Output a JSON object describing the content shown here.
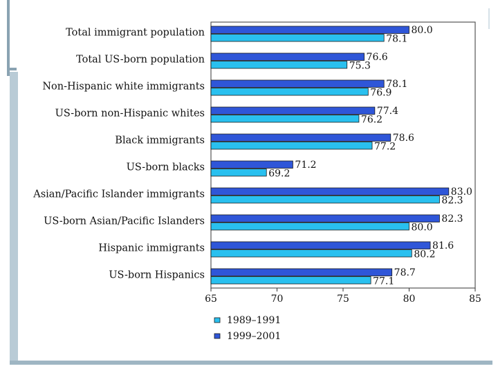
{
  "colors": {
    "series_1989": "#29c0ef",
    "series_1999": "#2f56d8",
    "frame": "#555555",
    "bar_stroke": "#1a1a1a"
  },
  "chart_data": {
    "type": "bar",
    "orientation": "horizontal",
    "title": "",
    "xlabel": "",
    "ylabel": "",
    "xlim": [
      65,
      85
    ],
    "xticks": [
      65,
      70,
      75,
      80,
      85
    ],
    "xtick_labels": [
      "65",
      "70",
      "75",
      "80",
      "85"
    ],
    "categories": [
      "Total immigrant population",
      "Total US-born population",
      "Non-Hispanic white immigrants",
      "US-born non-Hispanic whites",
      "Black immigrants",
      "US-born blacks",
      "Asian/Pacific Islander immigrants",
      "US-born Asian/Pacific Islanders",
      "Hispanic immigrants",
      "US-born Hispanics"
    ],
    "series": [
      {
        "name": "1999–2001",
        "values": [
          80.0,
          76.6,
          78.1,
          77.4,
          78.6,
          71.2,
          83.0,
          82.3,
          81.6,
          78.7
        ],
        "labels": [
          "80.0",
          "76.6",
          "78.1",
          "77.4",
          "78.6",
          "71.2",
          "83.0",
          "82.3",
          "81.6",
          "78.7"
        ]
      },
      {
        "name": "1989–1991",
        "values": [
          78.1,
          75.3,
          76.9,
          76.2,
          77.2,
          69.2,
          82.3,
          80.0,
          80.2,
          77.1
        ],
        "labels": [
          "78.1",
          "75.3",
          "76.9",
          "76.2",
          "77.2",
          "69.2",
          "82.3",
          "80.0",
          "80.2",
          "77.1"
        ]
      }
    ],
    "legend": {
      "placement": "bottom",
      "entries": [
        "1989–1991",
        "1999–2001"
      ]
    },
    "grid": false
  }
}
